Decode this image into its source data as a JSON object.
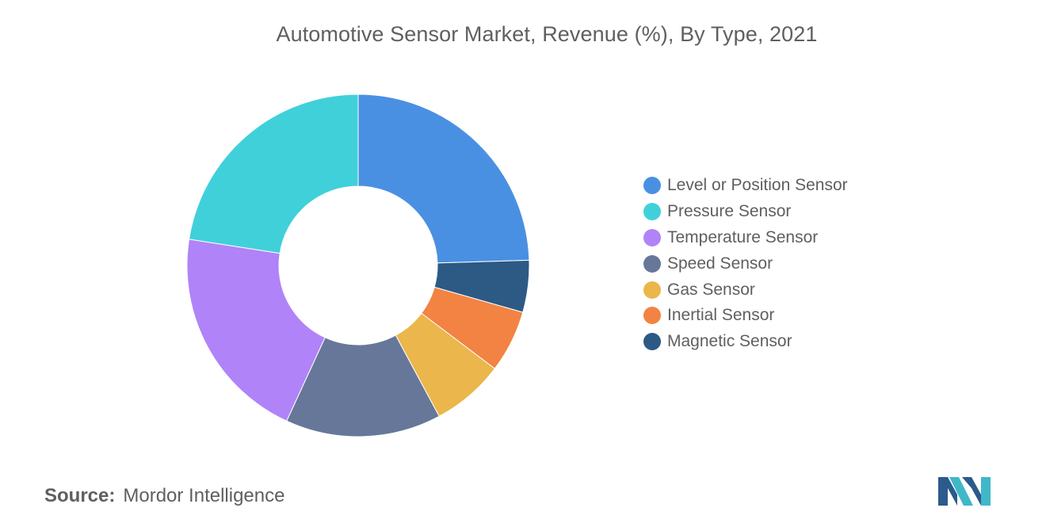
{
  "chart_data": {
    "type": "pie",
    "title": "Automotive Sensor Market, Revenue (%), By Type, 2021",
    "donut": true,
    "legend_position": "right",
    "categories": [
      "Level or Position Sensor",
      "Pressure Sensor",
      "Temperature Sensor",
      "Speed Sensor",
      "Gas Sensor",
      "Inertial Sensor",
      "Magnetic Sensor"
    ],
    "values": [
      25,
      23,
      21,
      15,
      7,
      6,
      5
    ],
    "order_clockwise_from_top": [
      "Level or Position Sensor",
      "Magnetic Sensor",
      "Inertial Sensor",
      "Gas Sensor",
      "Speed Sensor",
      "Temperature Sensor",
      "Pressure Sensor"
    ],
    "colors": {
      "Level or Position Sensor": "#4a90e2",
      "Pressure Sensor": "#40d0da",
      "Temperature Sensor": "#b083f8",
      "Speed Sensor": "#667799",
      "Gas Sensor": "#ebb64b",
      "Inertial Sensor": "#f28343",
      "Magnetic Sensor": "#2c5a84"
    }
  },
  "source": {
    "label": "Source:",
    "text": "Mordor Intelligence"
  },
  "logo": {
    "icon": "mordor-intelligence-logo",
    "colors": [
      "#2b5b8c",
      "#3fb8c8"
    ]
  }
}
